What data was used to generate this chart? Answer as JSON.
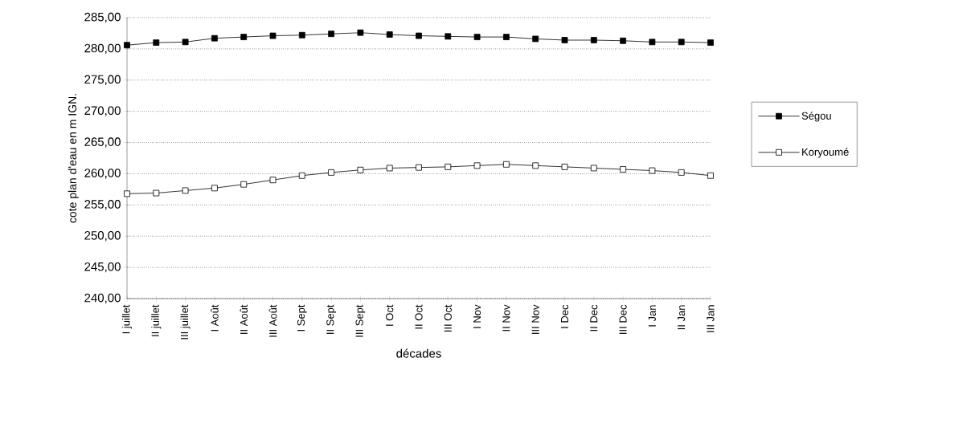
{
  "chart_data": {
    "type": "line",
    "xlabel": "décades",
    "ylabel": "cote plan d'eau en m IGN.",
    "categories": [
      "I juillet",
      "II juillet",
      "III juillet",
      "I Août",
      "II Août",
      "III Août",
      "I Sept",
      "II Sept",
      "III Sept",
      "I Oct",
      "II Oct",
      "III Oct",
      "I Nov",
      "II Nov",
      "III Nov",
      "I Dec",
      "II Dec",
      "III Dec",
      "I Jan",
      "II Jan",
      "III Jan"
    ],
    "series": [
      {
        "name": "Ségou",
        "color": "#000000",
        "values": [
          280.6,
          281.0,
          281.1,
          281.7,
          281.9,
          282.1,
          282.2,
          282.4,
          282.6,
          282.3,
          282.1,
          282.0,
          281.9,
          281.9,
          281.6,
          281.4,
          281.4,
          281.3,
          281.1,
          281.1,
          281.0
        ]
      },
      {
        "name": "Koryoumé",
        "color": "#000000",
        "values": [
          256.8,
          256.9,
          257.3,
          257.7,
          258.3,
          259.0,
          259.7,
          260.2,
          260.6,
          260.9,
          261.0,
          261.1,
          261.3,
          261.5,
          261.3,
          261.1,
          260.9,
          260.7,
          260.5,
          260.2,
          259.7
        ]
      }
    ],
    "ylim": [
      240,
      285
    ],
    "yticks": [
      {
        "value": 240,
        "label": "240,00"
      },
      {
        "value": 245,
        "label": "245,00"
      },
      {
        "value": 250,
        "label": "250,00"
      },
      {
        "value": 255,
        "label": "255,00"
      },
      {
        "value": 260,
        "label": "260,00"
      },
      {
        "value": 265,
        "label": "265,00"
      },
      {
        "value": 270,
        "label": "270,00"
      },
      {
        "value": 275,
        "label": "275,00"
      },
      {
        "value": 280,
        "label": "280,00"
      },
      {
        "value": 285,
        "label": "285,00"
      }
    ],
    "grid": "y",
    "legend": "right",
    "marker": "square",
    "line_style": "solid"
  }
}
